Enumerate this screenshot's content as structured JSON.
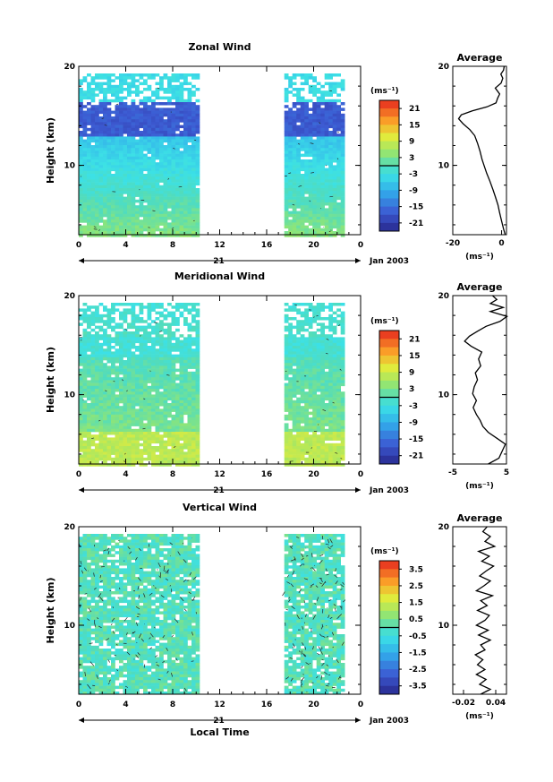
{
  "chart_data": [
    {
      "type": "heatmap",
      "title": "Zonal Wind",
      "ylabel": "Height (km)",
      "xlabel": "",
      "x_ticks": [
        "0",
        "4",
        "8",
        "12",
        "16",
        "20",
        "0"
      ],
      "y_ticks": [
        "10",
        "20"
      ],
      "date_day": "21",
      "date_label": "Jan 2003",
      "xlim": [
        0,
        24
      ],
      "ylim": [
        3,
        20
      ],
      "data_segments": [
        [
          0,
          10
        ],
        [
          17.5,
          22.5
        ]
      ],
      "colorbar": {
        "unit": "(ms⁻¹)",
        "ticks": [
          "21",
          "15",
          "9",
          "3",
          "-3",
          "-9",
          "-15",
          "-21"
        ],
        "range": [
          -24,
          24
        ]
      },
      "profile": {
        "title": "Average",
        "xlabel": "(ms⁻¹)",
        "x_ticks": [
          "-20",
          "0"
        ],
        "xlim": [
          -20,
          2
        ],
        "y_ticks": [
          "10",
          "20"
        ],
        "points": [
          [
            1.5,
            3
          ],
          [
            0.8,
            3.6
          ],
          [
            0,
            4.4
          ],
          [
            -0.8,
            5.2
          ],
          [
            -1.5,
            6
          ],
          [
            -2.5,
            6.8
          ],
          [
            -3.6,
            7.6
          ],
          [
            -4.8,
            8.4
          ],
          [
            -6.1,
            9.2
          ],
          [
            -7.2,
            10
          ],
          [
            -8,
            10.6
          ],
          [
            -8.8,
            11.4
          ],
          [
            -9.8,
            12.2
          ],
          [
            -11,
            13
          ],
          [
            -13,
            13.6
          ],
          [
            -15.8,
            14.2
          ],
          [
            -17.6,
            14.7
          ],
          [
            -16.5,
            15.1
          ],
          [
            -12,
            15.5
          ],
          [
            -6,
            15.9
          ],
          [
            -2.3,
            16.3
          ],
          [
            -1.6,
            16.8
          ],
          [
            -0.8,
            17.2
          ],
          [
            -2.6,
            17.8
          ],
          [
            -0.2,
            18.3
          ],
          [
            0.5,
            18.8
          ],
          [
            -0.3,
            19.2
          ],
          [
            0.8,
            19.6
          ],
          [
            1.1,
            20
          ]
        ]
      }
    },
    {
      "type": "heatmap",
      "title": "Meridional Wind",
      "ylabel": "Height (km)",
      "xlabel": "",
      "x_ticks": [
        "0",
        "4",
        "8",
        "12",
        "16",
        "20",
        "0"
      ],
      "y_ticks": [
        "10",
        "20"
      ],
      "date_day": "21",
      "date_label": "Jan 2003",
      "xlim": [
        0,
        24
      ],
      "ylim": [
        3,
        20
      ],
      "data_segments": [
        [
          0,
          10
        ],
        [
          17.5,
          22.5
        ]
      ],
      "colorbar": {
        "unit": "(ms⁻¹)",
        "ticks": [
          "21",
          "15",
          "9",
          "3",
          "-3",
          "-9",
          "-15",
          "-21"
        ],
        "range": [
          -24,
          24
        ]
      },
      "profile": {
        "title": "Average",
        "xlabel": "(ms⁻¹)",
        "x_ticks": [
          "-5",
          "5"
        ],
        "xlim": [
          -5,
          5
        ],
        "y_ticks": [
          "10",
          "20"
        ],
        "points": [
          [
            1.6,
            3
          ],
          [
            3.6,
            3.6
          ],
          [
            4.2,
            4.3
          ],
          [
            4.8,
            5
          ],
          [
            3.2,
            5.6
          ],
          [
            1.6,
            6.2
          ],
          [
            0.6,
            6.8
          ],
          [
            0.1,
            7.4
          ],
          [
            -0.6,
            8
          ],
          [
            -1.2,
            8.7
          ],
          [
            -0.6,
            9.4
          ],
          [
            -1.3,
            10.1
          ],
          [
            -1,
            10.8
          ],
          [
            -0.4,
            11.5
          ],
          [
            -0.8,
            12.2
          ],
          [
            0.2,
            12.9
          ],
          [
            -0.2,
            13.6
          ],
          [
            0.4,
            14.3
          ],
          [
            -1.6,
            14.9
          ],
          [
            -2.8,
            15.4
          ],
          [
            -1.9,
            15.9
          ],
          [
            -0.4,
            16.4
          ],
          [
            1.2,
            16.9
          ],
          [
            3.8,
            17.4
          ],
          [
            5.1,
            17.9
          ],
          [
            2,
            18.4
          ],
          [
            4.4,
            18.8
          ],
          [
            2,
            19.2
          ],
          [
            3.2,
            19.6
          ],
          [
            2.4,
            20
          ]
        ]
      }
    },
    {
      "type": "heatmap",
      "title": "Vertical Wind",
      "ylabel": "Height (km)",
      "xlabel": "Local Time",
      "x_ticks": [
        "0",
        "4",
        "8",
        "12",
        "16",
        "20",
        "0"
      ],
      "y_ticks": [
        "10",
        "20"
      ],
      "date_day": "21",
      "date_label": "Jan 2003",
      "xlim": [
        0,
        24
      ],
      "ylim": [
        3,
        20
      ],
      "data_segments": [
        [
          0,
          10
        ],
        [
          17.5,
          22.5
        ]
      ],
      "colorbar": {
        "unit": "(ms⁻¹)",
        "ticks": [
          "3.5",
          "2.5",
          "1.5",
          "0.5",
          "-0.5",
          "-1.5",
          "-2.5",
          "-3.5"
        ],
        "range": [
          -4,
          4
        ]
      },
      "profile": {
        "title": "Average",
        "xlabel": "(ms⁻¹)",
        "x_ticks": [
          "-0.02",
          "0.04"
        ],
        "xlim": [
          -0.04,
          0.06
        ],
        "y_ticks": [
          "10",
          "20"
        ],
        "points": [
          [
            0.012,
            3
          ],
          [
            0.03,
            3.5
          ],
          [
            0.01,
            4
          ],
          [
            0.022,
            4.5
          ],
          [
            0.004,
            5
          ],
          [
            0.02,
            5.5
          ],
          [
            0.006,
            6
          ],
          [
            0.016,
            6.5
          ],
          [
            0.002,
            7
          ],
          [
            0.02,
            7.5
          ],
          [
            0.012,
            8
          ],
          [
            0.03,
            8.5
          ],
          [
            0.008,
            9
          ],
          [
            0.026,
            9.5
          ],
          [
            0.004,
            10
          ],
          [
            0.02,
            10.5
          ],
          [
            0.028,
            11
          ],
          [
            0.006,
            11.5
          ],
          [
            0.024,
            12
          ],
          [
            0.012,
            12.5
          ],
          [
            0.034,
            13
          ],
          [
            0.004,
            13.5
          ],
          [
            0.018,
            14
          ],
          [
            0.03,
            14.5
          ],
          [
            0.01,
            15
          ],
          [
            0.022,
            15.5
          ],
          [
            0.036,
            16
          ],
          [
            0.014,
            16.5
          ],
          [
            0.028,
            17
          ],
          [
            0.008,
            17.5
          ],
          [
            0.038,
            18
          ],
          [
            0.02,
            18.5
          ],
          [
            0.03,
            19
          ],
          [
            0.016,
            19.5
          ],
          [
            0.024,
            20
          ]
        ]
      }
    }
  ]
}
